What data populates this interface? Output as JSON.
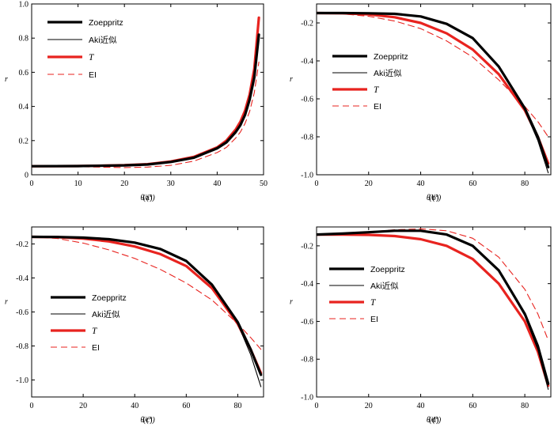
{
  "figure": {
    "panels_count": 4,
    "legend_labels": [
      "Zoeppritz",
      "Aki近似",
      "T",
      "EI"
    ],
    "colors": {
      "zoeppritz": "#000000",
      "aki": "#000000",
      "t": "#e8231f",
      "ei": "#e8231f",
      "axis": "#000000"
    }
  },
  "chart_data": [
    {
      "type": "line",
      "panel_label": "(a)",
      "xlabel": "θ/(°)",
      "ylabel": "r",
      "xlim": [
        0,
        50
      ],
      "ylim": [
        0,
        1.0
      ],
      "xticks": [
        0,
        10,
        20,
        30,
        40,
        50
      ],
      "xtick_labels": [
        "0",
        "10",
        "20",
        "30",
        "40",
        "50"
      ],
      "yticks": [
        0,
        0.2,
        0.4,
        0.6,
        0.8,
        1.0
      ],
      "ytick_labels": [
        "0",
        "0.2",
        "0.4",
        "0.6",
        "0.8",
        "1.0"
      ],
      "legend": [
        "Zoeppritz",
        "Aki近似",
        "T",
        "EI"
      ],
      "legend_position": "top-left",
      "series": [
        {
          "name": "Zoeppritz",
          "style": "thick-black",
          "x": [
            0,
            10,
            20,
            25,
            30,
            35,
            40,
            42,
            44,
            45,
            46,
            47,
            48,
            49
          ],
          "y": [
            0.05,
            0.051,
            0.055,
            0.06,
            0.075,
            0.1,
            0.155,
            0.19,
            0.25,
            0.29,
            0.35,
            0.44,
            0.57,
            0.82
          ]
        },
        {
          "name": "Aki近似",
          "style": "thin-black",
          "x": [
            0,
            10,
            20,
            25,
            30,
            35,
            40,
            42,
            44,
            45,
            46,
            47,
            48,
            49
          ],
          "y": [
            0.05,
            0.051,
            0.054,
            0.058,
            0.072,
            0.097,
            0.15,
            0.185,
            0.245,
            0.285,
            0.345,
            0.435,
            0.565,
            0.81
          ]
        },
        {
          "name": "T",
          "style": "thick-red",
          "x": [
            0,
            10,
            20,
            25,
            30,
            35,
            40,
            42,
            44,
            45,
            46,
            47,
            48,
            49
          ],
          "y": [
            0.05,
            0.051,
            0.056,
            0.062,
            0.078,
            0.105,
            0.16,
            0.2,
            0.265,
            0.31,
            0.375,
            0.47,
            0.62,
            0.92
          ]
        },
        {
          "name": "EI",
          "style": "dashed-red",
          "x": [
            0,
            10,
            20,
            25,
            30,
            35,
            40,
            42,
            44,
            45,
            46,
            47,
            48,
            49
          ],
          "y": [
            0.05,
            0.047,
            0.042,
            0.045,
            0.055,
            0.08,
            0.13,
            0.16,
            0.215,
            0.25,
            0.3,
            0.37,
            0.48,
            0.66
          ]
        }
      ]
    },
    {
      "type": "line",
      "panel_label": "(b)",
      "xlabel": "θ/(°)",
      "ylabel": "r",
      "xlim": [
        0,
        90
      ],
      "ylim": [
        -1.0,
        -0.1
      ],
      "xticks": [
        0,
        20,
        40,
        60,
        80
      ],
      "xtick_labels": [
        "0",
        "20",
        "40",
        "60",
        "80"
      ],
      "yticks": [
        -1.0,
        -0.8,
        -0.6,
        -0.4,
        -0.2
      ],
      "ytick_labels": [
        "-1.0",
        "-0.8",
        "-0.6",
        "-0.4",
        "-0.2"
      ],
      "legend": [
        "Zoeppritz",
        "Aki近似",
        "T",
        "EI"
      ],
      "legend_position": "center-left",
      "series": [
        {
          "name": "Zoeppritz",
          "style": "thick-black",
          "x": [
            0,
            10,
            20,
            30,
            40,
            50,
            60,
            70,
            80,
            85,
            89
          ],
          "y": [
            -0.148,
            -0.148,
            -0.149,
            -0.152,
            -0.166,
            -0.205,
            -0.28,
            -0.43,
            -0.65,
            -0.8,
            -0.96
          ]
        },
        {
          "name": "Aki近似",
          "style": "thin-black",
          "x": [
            0,
            10,
            20,
            30,
            40,
            50,
            60,
            70,
            80,
            85,
            89
          ],
          "y": [
            -0.148,
            -0.148,
            -0.149,
            -0.152,
            -0.166,
            -0.205,
            -0.28,
            -0.43,
            -0.66,
            -0.82,
            -0.99
          ]
        },
        {
          "name": "T",
          "style": "thick-red",
          "x": [
            0,
            10,
            20,
            30,
            40,
            50,
            60,
            70,
            80,
            85,
            89
          ],
          "y": [
            -0.148,
            -0.149,
            -0.155,
            -0.17,
            -0.2,
            -0.255,
            -0.34,
            -0.47,
            -0.66,
            -0.8,
            -0.94
          ]
        },
        {
          "name": "EI",
          "style": "dashed-red",
          "x": [
            0,
            10,
            20,
            30,
            40,
            50,
            60,
            70,
            80,
            85,
            89
          ],
          "y": [
            -0.148,
            -0.152,
            -0.165,
            -0.19,
            -0.23,
            -0.295,
            -0.38,
            -0.5,
            -0.64,
            -0.72,
            -0.8
          ]
        }
      ]
    },
    {
      "type": "line",
      "panel_label": "(c)",
      "xlabel": "θ/(°)",
      "ylabel": "r",
      "xlim": [
        0,
        90
      ],
      "ylim": [
        -1.1,
        -0.1
      ],
      "xticks": [
        0,
        20,
        40,
        60,
        80
      ],
      "xtick_labels": [
        "0",
        "20",
        "40",
        "60",
        "80"
      ],
      "yticks": [
        -1.0,
        -0.8,
        -0.6,
        -0.4,
        -0.2
      ],
      "ytick_labels": [
        "-1.0",
        "-0.8",
        "-0.6",
        "-0.4",
        "-0.2"
      ],
      "legend": [
        "Zoeppritz",
        "Aki近似",
        "T",
        "EI"
      ],
      "legend_position": "bottom-left",
      "series": [
        {
          "name": "Zoeppritz",
          "style": "thick-black",
          "x": [
            0,
            10,
            20,
            30,
            40,
            50,
            60,
            70,
            80,
            85,
            89
          ],
          "y": [
            -0.158,
            -0.159,
            -0.163,
            -0.172,
            -0.192,
            -0.23,
            -0.3,
            -0.44,
            -0.66,
            -0.82,
            -0.97
          ]
        },
        {
          "name": "Aki近似",
          "style": "thin-black",
          "x": [
            0,
            10,
            20,
            30,
            40,
            50,
            60,
            70,
            80,
            85,
            89
          ],
          "y": [
            -0.158,
            -0.159,
            -0.163,
            -0.172,
            -0.192,
            -0.23,
            -0.3,
            -0.44,
            -0.67,
            -0.85,
            -1.04
          ]
        },
        {
          "name": "T",
          "style": "thick-red",
          "x": [
            0,
            10,
            20,
            30,
            40,
            50,
            60,
            70,
            80,
            85,
            89
          ],
          "y": [
            -0.158,
            -0.16,
            -0.168,
            -0.185,
            -0.215,
            -0.26,
            -0.33,
            -0.46,
            -0.67,
            -0.82,
            -0.96
          ]
        },
        {
          "name": "EI",
          "style": "dashed-red",
          "x": [
            0,
            10,
            20,
            30,
            40,
            50,
            60,
            70,
            80,
            85,
            89
          ],
          "y": [
            -0.158,
            -0.168,
            -0.195,
            -0.235,
            -0.285,
            -0.35,
            -0.43,
            -0.53,
            -0.67,
            -0.75,
            -0.82
          ]
        }
      ]
    },
    {
      "type": "line",
      "panel_label": "(d)",
      "xlabel": "θ/(°)",
      "ylabel": "r",
      "xlim": [
        0,
        90
      ],
      "ylim": [
        -1.0,
        -0.1
      ],
      "xticks": [
        0,
        20,
        40,
        60,
        80
      ],
      "xtick_labels": [
        "0",
        "20",
        "40",
        "60",
        "80"
      ],
      "yticks": [
        -1.0,
        -0.8,
        -0.6,
        -0.4,
        -0.2
      ],
      "ytick_labels": [
        "-1.0",
        "-0.8",
        "-0.6",
        "-0.4",
        "-0.2"
      ],
      "legend": [
        "Zoeppritz",
        "Aki近似",
        "T",
        "EI"
      ],
      "legend_position": "center-left",
      "series": [
        {
          "name": "Zoeppritz",
          "style": "thick-black",
          "x": [
            0,
            10,
            20,
            30,
            40,
            50,
            60,
            70,
            80,
            85,
            89
          ],
          "y": [
            -0.14,
            -0.135,
            -0.128,
            -0.12,
            -0.12,
            -0.14,
            -0.2,
            -0.33,
            -0.56,
            -0.73,
            -0.93
          ]
        },
        {
          "name": "Aki近似",
          "style": "thin-black",
          "x": [
            0,
            10,
            20,
            30,
            40,
            50,
            60,
            70,
            80,
            85,
            89
          ],
          "y": [
            -0.14,
            -0.135,
            -0.127,
            -0.12,
            -0.12,
            -0.14,
            -0.2,
            -0.33,
            -0.57,
            -0.75,
            -0.96
          ]
        },
        {
          "name": "T",
          "style": "thick-red",
          "x": [
            0,
            10,
            20,
            30,
            40,
            50,
            60,
            70,
            80,
            85,
            89
          ],
          "y": [
            -0.14,
            -0.14,
            -0.142,
            -0.148,
            -0.165,
            -0.2,
            -0.27,
            -0.4,
            -0.6,
            -0.76,
            -0.94
          ]
        },
        {
          "name": "EI",
          "style": "dashed-red",
          "x": [
            0,
            10,
            20,
            30,
            40,
            50,
            60,
            70,
            80,
            85,
            89
          ],
          "y": [
            -0.14,
            -0.134,
            -0.125,
            -0.115,
            -0.11,
            -0.12,
            -0.16,
            -0.26,
            -0.43,
            -0.56,
            -0.7
          ]
        }
      ]
    }
  ]
}
